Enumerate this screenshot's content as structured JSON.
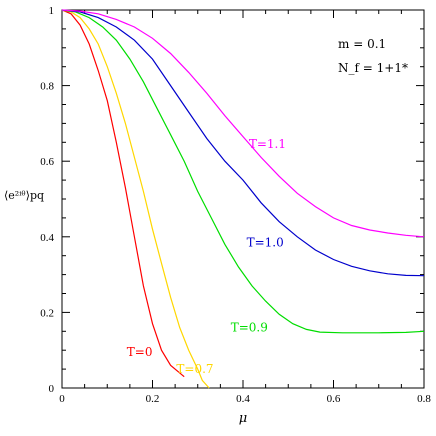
{
  "chart_data": {
    "type": "line",
    "xlabel": "μ",
    "ylabel": "⟨e²ⁱᶿ⟩pq",
    "xlim": [
      0,
      0.8
    ],
    "ylim": [
      0,
      1
    ],
    "xticks": [
      "0",
      "0.2",
      "0.4",
      "0.6",
      "0.8"
    ],
    "yticks": [
      "0",
      "0.2",
      "0.4",
      "0.6",
      "0.8",
      "1"
    ],
    "annotations": {
      "mass": "m  =  0.1",
      "flavors": "N_f  =  1+1*"
    },
    "series": [
      {
        "name": "T=0",
        "color": "#ff0000",
        "points": [
          [
            0,
            1
          ],
          [
            0.02,
            0.99
          ],
          [
            0.04,
            0.96
          ],
          [
            0.06,
            0.91
          ],
          [
            0.08,
            0.84
          ],
          [
            0.1,
            0.76
          ],
          [
            0.12,
            0.65
          ],
          [
            0.14,
            0.53
          ],
          [
            0.16,
            0.4
          ],
          [
            0.18,
            0.27
          ],
          [
            0.2,
            0.17
          ],
          [
            0.22,
            0.1
          ],
          [
            0.24,
            0.06
          ],
          [
            0.26,
            0.04
          ],
          [
            0.27,
            0.03
          ]
        ]
      },
      {
        "name": "T=0.7",
        "color": "#ffd700",
        "points": [
          [
            0,
            1
          ],
          [
            0.02,
            0.995
          ],
          [
            0.04,
            0.98
          ],
          [
            0.06,
            0.95
          ],
          [
            0.08,
            0.91
          ],
          [
            0.1,
            0.85
          ],
          [
            0.12,
            0.78
          ],
          [
            0.14,
            0.7
          ],
          [
            0.16,
            0.61
          ],
          [
            0.18,
            0.52
          ],
          [
            0.2,
            0.42
          ],
          [
            0.22,
            0.33
          ],
          [
            0.24,
            0.24
          ],
          [
            0.26,
            0.16
          ],
          [
            0.28,
            0.1
          ],
          [
            0.3,
            0.05
          ],
          [
            0.31,
            0.02
          ],
          [
            0.325,
            0
          ]
        ]
      },
      {
        "name": "T=0.9",
        "color": "#00dd00",
        "points": [
          [
            0,
            1
          ],
          [
            0.03,
            0.995
          ],
          [
            0.06,
            0.98
          ],
          [
            0.09,
            0.955
          ],
          [
            0.12,
            0.92
          ],
          [
            0.15,
            0.87
          ],
          [
            0.18,
            0.81
          ],
          [
            0.21,
            0.74
          ],
          [
            0.24,
            0.67
          ],
          [
            0.27,
            0.6
          ],
          [
            0.3,
            0.52
          ],
          [
            0.33,
            0.45
          ],
          [
            0.36,
            0.38
          ],
          [
            0.39,
            0.32
          ],
          [
            0.42,
            0.27
          ],
          [
            0.45,
            0.23
          ],
          [
            0.48,
            0.195
          ],
          [
            0.51,
            0.17
          ],
          [
            0.54,
            0.155
          ],
          [
            0.57,
            0.148
          ],
          [
            0.62,
            0.146
          ],
          [
            0.7,
            0.146
          ],
          [
            0.76,
            0.147
          ],
          [
            0.8,
            0.15
          ]
        ]
      },
      {
        "name": "T=1.0",
        "color": "#0000cc",
        "points": [
          [
            0,
            1
          ],
          [
            0.04,
            0.995
          ],
          [
            0.08,
            0.98
          ],
          [
            0.12,
            0.955
          ],
          [
            0.16,
            0.92
          ],
          [
            0.2,
            0.87
          ],
          [
            0.24,
            0.8
          ],
          [
            0.28,
            0.73
          ],
          [
            0.32,
            0.66
          ],
          [
            0.36,
            0.6
          ],
          [
            0.4,
            0.55
          ],
          [
            0.44,
            0.49
          ],
          [
            0.48,
            0.44
          ],
          [
            0.52,
            0.4
          ],
          [
            0.56,
            0.365
          ],
          [
            0.6,
            0.34
          ],
          [
            0.64,
            0.322
          ],
          [
            0.68,
            0.31
          ],
          [
            0.72,
            0.302
          ],
          [
            0.76,
            0.298
          ],
          [
            0.8,
            0.297
          ]
        ]
      },
      {
        "name": "T=1.1",
        "color": "#ff00ff",
        "points": [
          [
            0,
            1
          ],
          [
            0.04,
            0.997
          ],
          [
            0.08,
            0.99
          ],
          [
            0.12,
            0.975
          ],
          [
            0.16,
            0.955
          ],
          [
            0.2,
            0.925
          ],
          [
            0.24,
            0.885
          ],
          [
            0.28,
            0.835
          ],
          [
            0.32,
            0.78
          ],
          [
            0.36,
            0.72
          ],
          [
            0.4,
            0.665
          ],
          [
            0.44,
            0.61
          ],
          [
            0.48,
            0.56
          ],
          [
            0.52,
            0.515
          ],
          [
            0.56,
            0.48
          ],
          [
            0.6,
            0.45
          ],
          [
            0.64,
            0.43
          ],
          [
            0.68,
            0.418
          ],
          [
            0.72,
            0.41
          ],
          [
            0.76,
            0.404
          ],
          [
            0.8,
            0.4
          ]
        ]
      }
    ]
  }
}
